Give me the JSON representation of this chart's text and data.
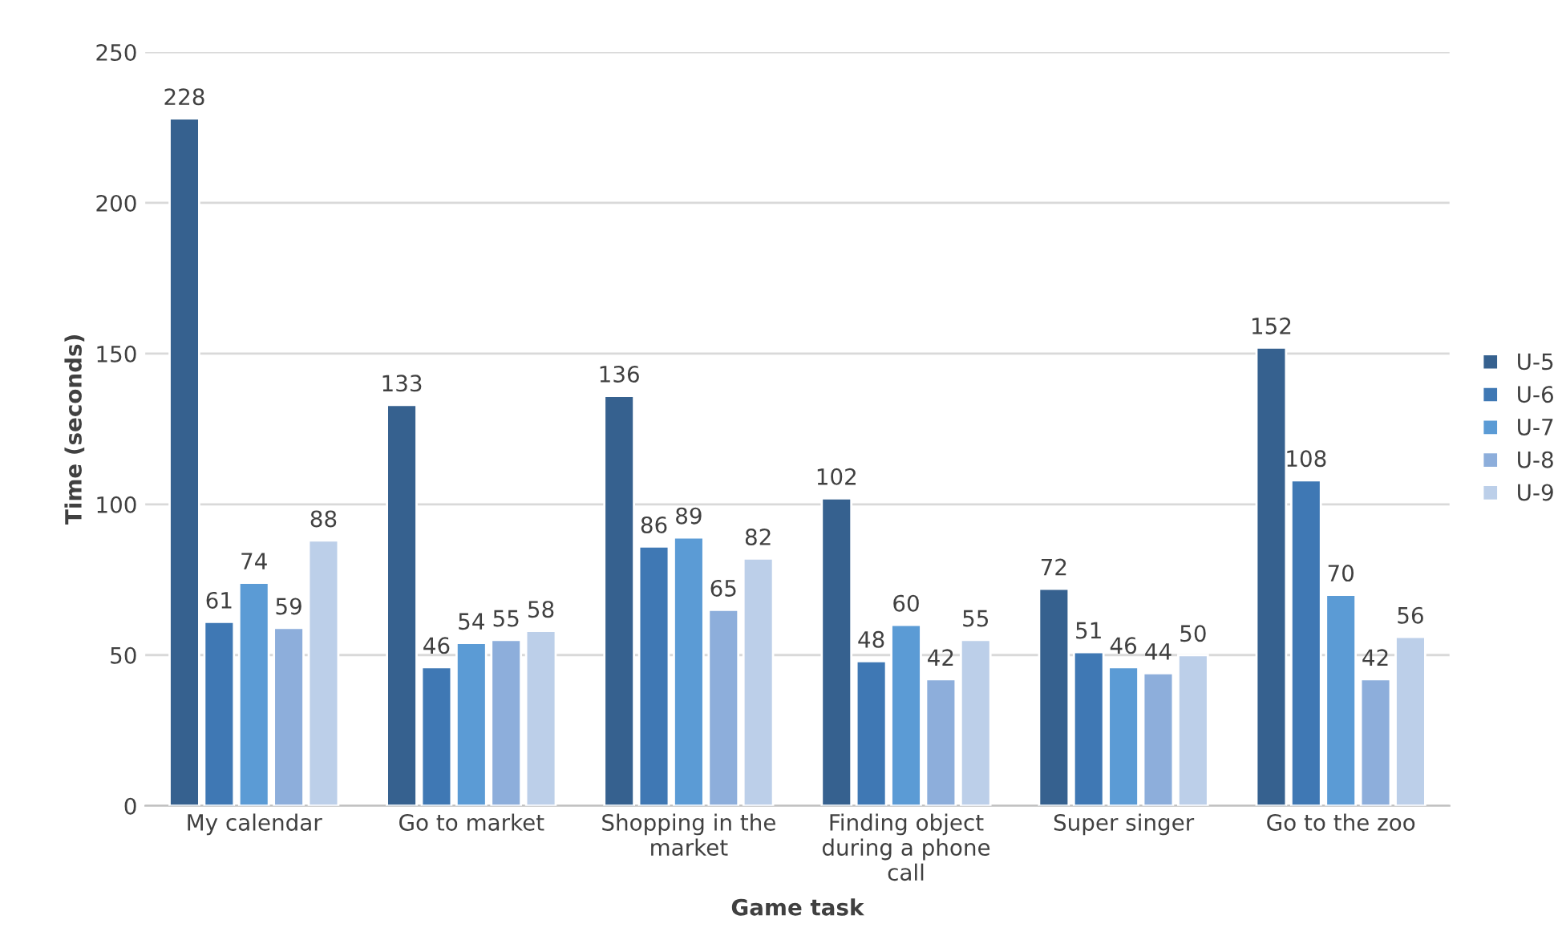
{
  "chart_data": {
    "type": "bar",
    "xlabel": "Game task",
    "ylabel": "Time (seconds)",
    "categories": [
      "My calendar",
      "Go to market",
      "Shopping in the market",
      "Finding object during a phone call",
      "Super singer",
      "Go to the zoo"
    ],
    "series": [
      {
        "name": "U-5",
        "color": "#36618f",
        "values": [
          228,
          133,
          136,
          102,
          72,
          152
        ]
      },
      {
        "name": "U-6",
        "color": "#3f78b4",
        "values": [
          61,
          46,
          86,
          48,
          51,
          108
        ]
      },
      {
        "name": "U-7",
        "color": "#5b9bd5",
        "values": [
          74,
          54,
          89,
          60,
          46,
          70
        ]
      },
      {
        "name": "U-8",
        "color": "#8daedb",
        "values": [
          59,
          55,
          65,
          42,
          44,
          42
        ]
      },
      {
        "name": "U-9",
        "color": "#bccfe9",
        "values": [
          88,
          58,
          82,
          55,
          50,
          56
        ]
      }
    ],
    "ylim": [
      0,
      250
    ],
    "yticks": [
      0,
      50,
      100,
      150,
      200,
      250
    ],
    "grid": "y",
    "legend": "right",
    "data_labels": true
  }
}
